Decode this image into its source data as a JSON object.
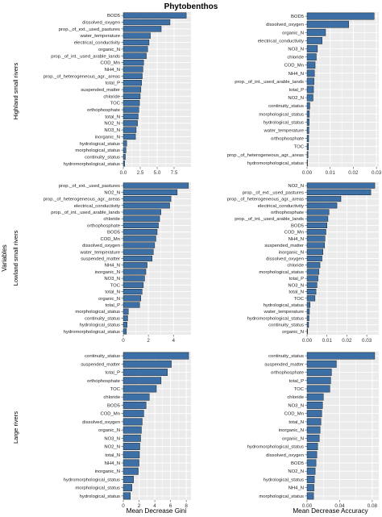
{
  "title": "Phytobenthos",
  "ylabel": "Variables",
  "xlabels": [
    "Mean Decrease Gini",
    "Mean Decrease Accuracy"
  ],
  "row_labels": [
    "Highland small rivers",
    "Lowland small rivers",
    "Large rivers"
  ],
  "colors": {
    "bar": "#3B6FA5",
    "bar_stroke": "#1a1a1a",
    "panel_bg": "#EBEBEB",
    "grid": "#FFFFFF"
  },
  "chart_data": [
    {
      "type": "bar",
      "orientation": "horizontal",
      "row": "Highland small rivers",
      "metric": "Mean Decrease Gini",
      "xlim": [
        0,
        10
      ],
      "xticks": [
        "0.0",
        "2.5",
        "5.0",
        "7.5"
      ],
      "xtick_values": [
        0,
        2.5,
        5,
        7.5
      ],
      "categories": [
        "BOD5",
        "dissolved_oxygen",
        "prop._of_ext._used_pastures",
        "water_temperature",
        "electrical_conductivity",
        "organic_N",
        "prop._of_int._used_arable_lands",
        "COD_Mn",
        "NH4_N",
        "prop._of_heterogeneous_agr._areas",
        "total_P",
        "suspended_matter",
        "chloride",
        "TOC",
        "orthophosphate",
        "total_N",
        "NO2_N",
        "NO3_N",
        "inorganic_N",
        "hydrological_status",
        "morphological_status",
        "continuity_status",
        "hydromorphological_status"
      ],
      "values": [
        9.3,
        6.9,
        5.6,
        4.0,
        3.8,
        3.6,
        3.4,
        3.0,
        2.9,
        2.8,
        2.7,
        2.6,
        2.5,
        2.4,
        2.3,
        2.2,
        2.1,
        1.9,
        1.8,
        0.5,
        0.4,
        0.3,
        0.2
      ]
    },
    {
      "type": "bar",
      "orientation": "horizontal",
      "row": "Highland small rivers",
      "metric": "Mean Decrease Accuracy",
      "xlim": [
        0,
        0.031
      ],
      "xticks": [
        "0.00",
        "0.01",
        "0.02",
        "0.03"
      ],
      "xtick_values": [
        0,
        0.01,
        0.02,
        0.03
      ],
      "categories": [
        "BOD5",
        "dissolved_oxygen",
        "organic_N",
        "electrical_conductivity",
        "NO3_N",
        "chloride",
        "COD_Mn",
        "NH4_N",
        "prop._of_int._used_arable_lands",
        "total_P",
        "NO2_N",
        "continuity_status",
        "morphological_status",
        "hydrological_status",
        "water_temperature",
        "orthophosphate",
        "TOC",
        "prop._of_heterogeneous_agr._areas",
        "hydromorphological_status"
      ],
      "values": [
        0.029,
        0.018,
        0.008,
        0.0065,
        0.0045,
        0.004,
        0.0035,
        0.0032,
        0.003,
        0.0028,
        0.0026,
        0.0012,
        0.001,
        0.0009,
        0.0008,
        0.0007,
        0.0006,
        0.0004,
        0.0002
      ]
    },
    {
      "type": "bar",
      "orientation": "horizontal",
      "row": "Lowland small rivers",
      "metric": "Mean Decrease Gini",
      "xlim": [
        0,
        5.4
      ],
      "xticks": [
        "0",
        "2",
        "4"
      ],
      "xtick_values": [
        0,
        2,
        4
      ],
      "categories": [
        "prop._of_ext._used_pastures",
        "NO2_N",
        "prop._of_heterogeneous_agr._areas",
        "electrical_conductivity",
        "prop._of_int._used_arable_lands",
        "chloride",
        "orthophosphate",
        "BOD5",
        "COD_Mn",
        "dissolved_oxygen",
        "water_temperature",
        "suspended_matter",
        "NH4_N",
        "inorganic_N",
        "NO3_N",
        "TOC",
        "total_N",
        "organic_N",
        "total_P",
        "morphological_status",
        "continuity_status",
        "hydrological_status",
        "hydromorphological_status"
      ],
      "values": [
        5.2,
        4.3,
        3.8,
        3.7,
        3.0,
        2.9,
        2.8,
        2.7,
        2.6,
        2.5,
        2.4,
        2.3,
        1.9,
        1.8,
        1.7,
        1.6,
        1.5,
        1.4,
        1.3,
        0.4,
        0.35,
        0.3,
        0.25
      ]
    },
    {
      "type": "bar",
      "orientation": "horizontal",
      "row": "Lowland small rivers",
      "metric": "Mean Decrease Accuracy",
      "xlim": [
        0,
        0.036
      ],
      "xticks": [
        "0.00",
        "0.01",
        "0.02",
        "0.03"
      ],
      "xtick_values": [
        0,
        0.01,
        0.02,
        0.03
      ],
      "categories": [
        "NO2_N",
        "prop._of_ext._used_pastures",
        "prop._of_heterogeneous_agr._areas",
        "electrical_conductivity",
        "orthophosphate",
        "prop._of_int._used_arable_lands",
        "BOD5",
        "COD_Mn",
        "NH4_N",
        "suspended_matter",
        "inorganic_N",
        "dissolved_oxygen",
        "chloride",
        "morphological_status",
        "total_P",
        "NO3_N",
        "total_N",
        "TOC",
        "hydrological_status",
        "water_temperature",
        "hydromorphological_status",
        "continuity_status",
        "organic_N"
      ],
      "values": [
        0.034,
        0.032,
        0.017,
        0.015,
        0.011,
        0.0105,
        0.01,
        0.0095,
        0.009,
        0.0088,
        0.008,
        0.0075,
        0.0065,
        0.006,
        0.0055,
        0.005,
        0.0045,
        0.004,
        0.0015,
        0.0012,
        0.001,
        0.0008,
        0.0003
      ]
    },
    {
      "type": "bar",
      "orientation": "horizontal",
      "row": "Large rivers",
      "metric": "Mean Decrease Gini",
      "xlim": [
        0,
        8.6
      ],
      "xticks": [
        "0",
        "2",
        "4",
        "6",
        "8"
      ],
      "xtick_values": [
        0,
        2,
        4,
        6,
        8
      ],
      "categories": [
        "continuity_status",
        "suspended_matter",
        "total_P",
        "orthophosphate",
        "TOC",
        "chloride",
        "BOD5",
        "COD_Mn",
        "dissolved_oxygen",
        "organic_N",
        "NO3_N",
        "NO2_N",
        "total_N",
        "NH4_N",
        "inorganic_N",
        "hydromorphological_status",
        "morphological_status",
        "hydrological_status"
      ],
      "values": [
        8.3,
        6.1,
        5.6,
        4.8,
        4.2,
        3.3,
        2.9,
        2.6,
        2.4,
        2.3,
        2.2,
        2.1,
        2.05,
        2.0,
        1.9,
        1.3,
        1.1,
        0.9
      ]
    },
    {
      "type": "bar",
      "orientation": "horizontal",
      "row": "Large rivers",
      "metric": "Mean Decrease Accuracy",
      "xlim": [
        0,
        0.088
      ],
      "xticks": [
        "0.00",
        "0.04",
        "0.08"
      ],
      "xtick_values": [
        0,
        0.04,
        0.08
      ],
      "categories": [
        "continuity_status",
        "suspended_matter",
        "orthophosphate",
        "total_P",
        "TOC",
        "chloride",
        "NO3_N",
        "COD_Mn",
        "total_N",
        "inorganic_N",
        "organic_N",
        "hydromorphological_status",
        "dissolved_oxygen",
        "BOD5",
        "NO2_N",
        "hydrological_status",
        "NH4_N",
        "morphological_status"
      ],
      "values": [
        0.083,
        0.036,
        0.03,
        0.029,
        0.028,
        0.02,
        0.019,
        0.018,
        0.017,
        0.016,
        0.015,
        0.013,
        0.012,
        0.011,
        0.01,
        0.009,
        0.0085,
        0.008
      ]
    }
  ]
}
